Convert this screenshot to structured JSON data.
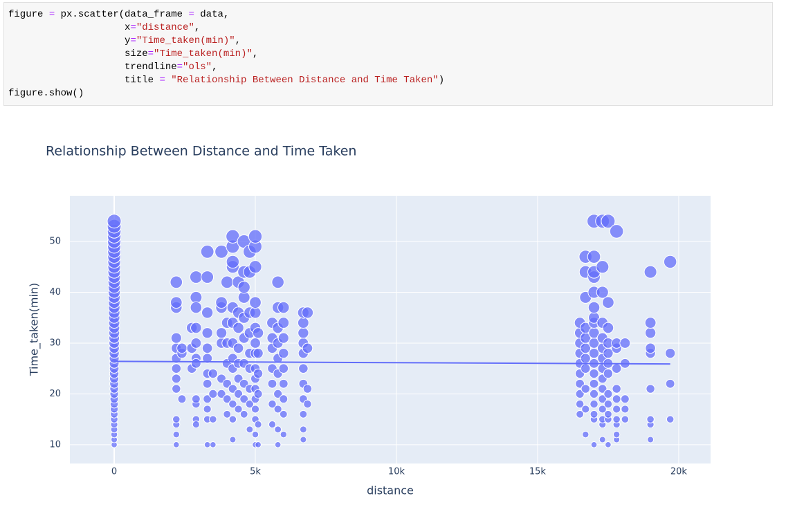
{
  "code": {
    "lines": [
      [
        "figure ",
        "=",
        " px.scatter(data_frame ",
        "=",
        " data,"
      ],
      [
        "                    x",
        "=",
        "\"distance\"",
        ","
      ],
      [
        "                    y",
        "=",
        "\"Time_taken(min)\"",
        ","
      ],
      [
        "                    size",
        "=",
        "\"Time_taken(min)\"",
        ","
      ],
      [
        "                    trendline",
        "=",
        "\"ols\"",
        ","
      ],
      [
        "                    title ",
        "=",
        " \"Relationship Between Distance and Time Taken\"",
        ")"
      ],
      [
        "figure.show()"
      ]
    ]
  },
  "chart_data": {
    "type": "scatter",
    "title": "Relationship Between Distance and Time Taken",
    "x_label": "distance",
    "y_label": "Time_taken(min)",
    "color": "#636efa",
    "grid": true,
    "xlim": [
      -1570,
      21130
    ],
    "ylim": [
      6.3,
      59
    ],
    "xticks": [
      0,
      {
        "value": 5000,
        "label": "5k"
      },
      {
        "value": 10000,
        "label": "10k"
      },
      {
        "value": 15000,
        "label": "15k"
      },
      {
        "value": 20000,
        "label": "20k"
      }
    ],
    "yticks": [
      10,
      20,
      30,
      40,
      50
    ],
    "x": [
      0,
      0,
      0,
      0,
      0,
      0,
      0,
      0,
      0,
      0,
      0,
      0,
      0,
      0,
      0,
      0,
      0,
      0,
      0,
      0,
      0,
      0,
      0,
      0,
      0,
      0,
      0,
      0,
      0,
      0,
      0,
      0,
      0,
      0,
      0,
      0,
      0,
      0,
      0,
      0,
      0,
      0,
      0,
      0,
      0,
      2200,
      2200,
      2200,
      2200,
      2200,
      2200,
      2200,
      2200,
      2200,
      2200,
      2200,
      2200,
      2200,
      2400,
      2400,
      2400,
      2750,
      2750,
      2750,
      2900,
      2900,
      2900,
      2900,
      2900,
      2900,
      2900,
      2900,
      2900,
      2900,
      2900,
      3300,
      3300,
      3300,
      3300,
      3300,
      3300,
      3300,
      3300,
      3300,
      3300,
      3300,
      3300,
      3500,
      3500,
      3500,
      3500,
      3800,
      3800,
      3800,
      3800,
      3800,
      3800,
      3800,
      4000,
      4000,
      4000,
      4000,
      4000,
      4000,
      4000,
      4200,
      4200,
      4200,
      4200,
      4200,
      4200,
      4200,
      4200,
      4200,
      4200,
      4200,
      4200,
      4200,
      4400,
      4400,
      4400,
      4400,
      4400,
      4400,
      4400,
      4400,
      4600,
      4600,
      4600,
      4600,
      4600,
      4600,
      4600,
      4600,
      4600,
      4600,
      4800,
      4800,
      4800,
      4800,
      4800,
      4800,
      4800,
      4800,
      4800,
      5000,
      5000,
      5000,
      5000,
      5000,
      5000,
      5000,
      5000,
      5000,
      5000,
      5000,
      5000,
      5000,
      5000,
      5000,
      5000,
      5100,
      5100,
      5100,
      5100,
      5100,
      5100,
      5600,
      5600,
      5600,
      5600,
      5600,
      5600,
      5600,
      5800,
      5800,
      5800,
      5800,
      5800,
      5800,
      5800,
      5800,
      5800,
      5800,
      6000,
      6000,
      6000,
      6000,
      6000,
      6000,
      6000,
      6000,
      6000,
      6700,
      6700,
      6700,
      6700,
      6700,
      6700,
      6700,
      6700,
      6700,
      6700,
      6700,
      6850,
      6850,
      6850,
      6850,
      16500,
      16500,
      16500,
      16500,
      16500,
      16500,
      16500,
      16500,
      16500,
      16500,
      16700,
      16700,
      16700,
      16700,
      16700,
      16700,
      16700,
      16700,
      16700,
      16700,
      16700,
      17000,
      17000,
      17000,
      17000,
      17000,
      17000,
      17000,
      17000,
      17000,
      17000,
      17000,
      17000,
      17000,
      17000,
      17000,
      17000,
      17000,
      17000,
      17000,
      17300,
      17300,
      17300,
      17300,
      17300,
      17300,
      17300,
      17300,
      17300,
      17300,
      17300,
      17300,
      17300,
      17300,
      17300,
      17500,
      17500,
      17500,
      17500,
      17500,
      17500,
      17500,
      17500,
      17500,
      17500,
      17500,
      17500,
      17800,
      17800,
      17800,
      17800,
      17800,
      17800,
      17800,
      17800,
      17800,
      17800,
      17800,
      18100,
      18100,
      18100,
      18100,
      18100,
      19000,
      19000,
      19000,
      19000,
      19000,
      19000,
      19000,
      19000,
      19000,
      19700,
      19700,
      19700,
      19700
    ],
    "values": [
      10,
      11,
      12,
      13,
      14,
      15,
      16,
      17,
      18,
      19,
      20,
      21,
      22,
      23,
      24,
      25,
      26,
      27,
      28,
      29,
      30,
      31,
      32,
      33,
      34,
      35,
      36,
      37,
      38,
      39,
      40,
      41,
      42,
      43,
      44,
      45,
      46,
      47,
      48,
      49,
      50,
      51,
      52,
      53,
      54,
      10,
      12,
      14,
      15,
      21,
      23,
      25,
      27,
      29,
      31,
      37,
      38,
      42,
      19,
      28,
      29,
      33,
      29,
      25,
      43,
      39,
      37,
      33,
      30,
      27,
      26,
      18,
      19,
      15,
      14,
      10,
      15,
      17,
      19,
      22,
      24,
      27,
      29,
      32,
      36,
      43,
      48,
      10,
      15,
      20,
      24,
      20,
      23,
      30,
      32,
      37,
      38,
      48,
      16,
      19,
      22,
      26,
      30,
      34,
      42,
      11,
      15,
      18,
      21,
      25,
      27,
      30,
      34,
      37,
      45,
      46,
      49,
      51,
      17,
      20,
      23,
      26,
      29,
      33,
      36,
      42,
      16,
      19,
      22,
      26,
      31,
      35,
      39,
      41,
      44,
      50,
      13,
      18,
      21,
      25,
      28,
      32,
      36,
      44,
      48,
      10,
      12,
      15,
      17,
      19,
      21,
      23,
      25,
      28,
      30,
      33,
      36,
      38,
      45,
      49,
      51,
      10,
      14,
      20,
      24,
      28,
      32,
      14,
      18,
      22,
      25,
      29,
      31,
      34,
      10,
      13,
      17,
      20,
      24,
      27,
      30,
      33,
      37,
      42,
      12,
      16,
      19,
      22,
      25,
      28,
      31,
      34,
      37,
      11,
      13,
      16,
      19,
      22,
      25,
      28,
      30,
      32,
      34,
      36,
      18,
      21,
      29,
      36,
      16,
      18,
      20,
      22,
      24,
      26,
      28,
      30,
      32,
      34,
      12,
      17,
      21,
      25,
      27,
      29,
      31,
      33,
      39,
      44,
      47,
      10,
      15,
      16,
      18,
      20,
      22,
      24,
      26,
      28,
      30,
      32,
      34,
      35,
      37,
      40,
      43,
      44,
      47,
      54,
      11,
      14,
      15,
      17,
      19,
      21,
      23,
      25,
      27,
      29,
      31,
      34,
      40,
      45,
      54,
      10,
      15,
      16,
      18,
      20,
      24,
      26,
      28,
      30,
      33,
      38,
      54,
      11,
      12,
      14,
      15,
      17,
      19,
      21,
      25,
      29,
      30,
      52,
      15,
      17,
      19,
      26,
      30,
      11,
      14,
      15,
      21,
      28,
      29,
      32,
      34,
      44,
      15,
      22,
      28,
      46
    ],
    "trendline": {
      "x": [
        0,
        19700
      ],
      "values": [
        26.4,
        25.9
      ]
    }
  }
}
